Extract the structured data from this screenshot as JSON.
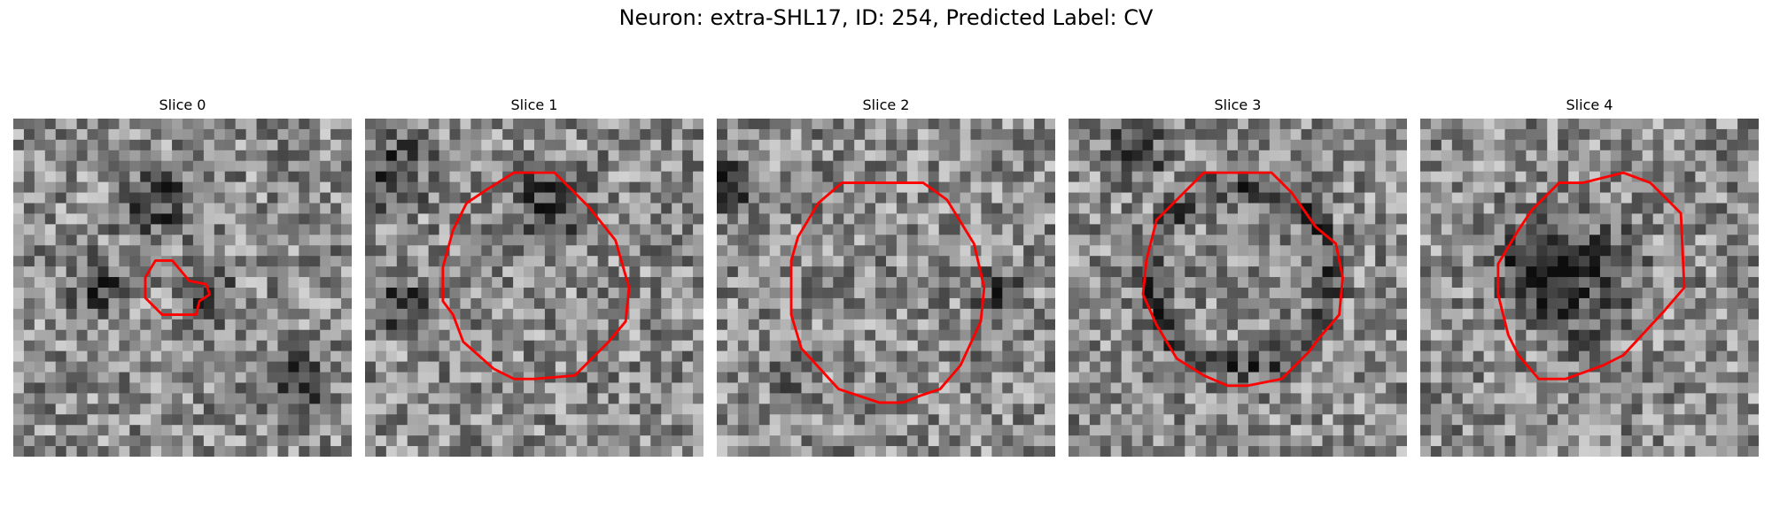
{
  "figure": {
    "title": "Neuron: extra-SHL17, ID: 254, Predicted Label: CV",
    "contour_color": "#ff0000"
  },
  "slices": [
    {
      "title": "Slice 0",
      "seed": 11,
      "contour": [
        [
          0.42,
          0.42
        ],
        [
          0.47,
          0.42
        ],
        [
          0.52,
          0.48
        ],
        [
          0.57,
          0.49
        ],
        [
          0.58,
          0.52
        ],
        [
          0.55,
          0.54
        ],
        [
          0.54,
          0.58
        ],
        [
          0.44,
          0.58
        ],
        [
          0.39,
          0.53
        ],
        [
          0.39,
          0.47
        ]
      ],
      "dark_regions": [
        [
          0.42,
          0.25,
          0.1
        ],
        [
          0.58,
          0.52,
          0.07
        ],
        [
          0.82,
          0.78,
          0.1
        ],
        [
          0.25,
          0.5,
          0.08
        ]
      ]
    },
    {
      "title": "Slice 1",
      "seed": 23,
      "contour": [
        [
          0.44,
          0.16
        ],
        [
          0.56,
          0.16
        ],
        [
          0.6,
          0.2
        ],
        [
          0.66,
          0.26
        ],
        [
          0.74,
          0.36
        ],
        [
          0.78,
          0.5
        ],
        [
          0.77,
          0.6
        ],
        [
          0.72,
          0.66
        ],
        [
          0.66,
          0.72
        ],
        [
          0.62,
          0.76
        ],
        [
          0.5,
          0.77
        ],
        [
          0.44,
          0.77
        ],
        [
          0.38,
          0.74
        ],
        [
          0.29,
          0.66
        ],
        [
          0.26,
          0.58
        ],
        [
          0.23,
          0.54
        ],
        [
          0.23,
          0.44
        ],
        [
          0.26,
          0.33
        ],
        [
          0.3,
          0.25
        ],
        [
          0.36,
          0.21
        ]
      ],
      "dark_regions": [
        [
          0.08,
          0.15,
          0.1
        ],
        [
          0.55,
          0.25,
          0.1
        ],
        [
          0.1,
          0.55,
          0.08
        ]
      ]
    },
    {
      "title": "Slice 2",
      "seed": 37,
      "contour": [
        [
          0.37,
          0.19
        ],
        [
          0.5,
          0.19
        ],
        [
          0.61,
          0.19
        ],
        [
          0.68,
          0.24
        ],
        [
          0.76,
          0.37
        ],
        [
          0.79,
          0.5
        ],
        [
          0.78,
          0.6
        ],
        [
          0.72,
          0.73
        ],
        [
          0.66,
          0.8
        ],
        [
          0.6,
          0.82
        ],
        [
          0.55,
          0.84
        ],
        [
          0.48,
          0.84
        ],
        [
          0.36,
          0.8
        ],
        [
          0.25,
          0.68
        ],
        [
          0.22,
          0.58
        ],
        [
          0.22,
          0.42
        ],
        [
          0.24,
          0.35
        ],
        [
          0.3,
          0.25
        ]
      ],
      "dark_regions": [
        [
          0.04,
          0.2,
          0.08
        ],
        [
          0.83,
          0.52,
          0.06
        ],
        [
          0.2,
          0.75,
          0.05
        ]
      ]
    },
    {
      "title": "Slice 3",
      "seed": 53,
      "contour": [
        [
          0.4,
          0.16
        ],
        [
          0.52,
          0.16
        ],
        [
          0.6,
          0.16
        ],
        [
          0.66,
          0.22
        ],
        [
          0.73,
          0.32
        ],
        [
          0.79,
          0.37
        ],
        [
          0.81,
          0.47
        ],
        [
          0.8,
          0.58
        ],
        [
          0.74,
          0.65
        ],
        [
          0.71,
          0.69
        ],
        [
          0.63,
          0.77
        ],
        [
          0.53,
          0.79
        ],
        [
          0.47,
          0.79
        ],
        [
          0.4,
          0.76
        ],
        [
          0.32,
          0.71
        ],
        [
          0.26,
          0.61
        ],
        [
          0.22,
          0.52
        ],
        [
          0.23,
          0.42
        ],
        [
          0.26,
          0.3
        ]
      ],
      "ring": true,
      "dark_regions": [
        [
          0.2,
          0.1,
          0.08
        ]
      ]
    },
    {
      "title": "Slice 4",
      "seed": 71,
      "contour": [
        [
          0.41,
          0.19
        ],
        [
          0.48,
          0.19
        ],
        [
          0.6,
          0.16
        ],
        [
          0.68,
          0.19
        ],
        [
          0.77,
          0.28
        ],
        [
          0.78,
          0.5
        ],
        [
          0.72,
          0.57
        ],
        [
          0.6,
          0.7
        ],
        [
          0.54,
          0.73
        ],
        [
          0.43,
          0.77
        ],
        [
          0.35,
          0.77
        ],
        [
          0.29,
          0.7
        ],
        [
          0.26,
          0.64
        ],
        [
          0.23,
          0.52
        ],
        [
          0.23,
          0.43
        ],
        [
          0.29,
          0.33
        ],
        [
          0.33,
          0.27
        ]
      ],
      "dark_regions": [
        [
          0.45,
          0.47,
          0.17
        ],
        [
          0.35,
          0.43,
          0.1
        ]
      ]
    }
  ]
}
